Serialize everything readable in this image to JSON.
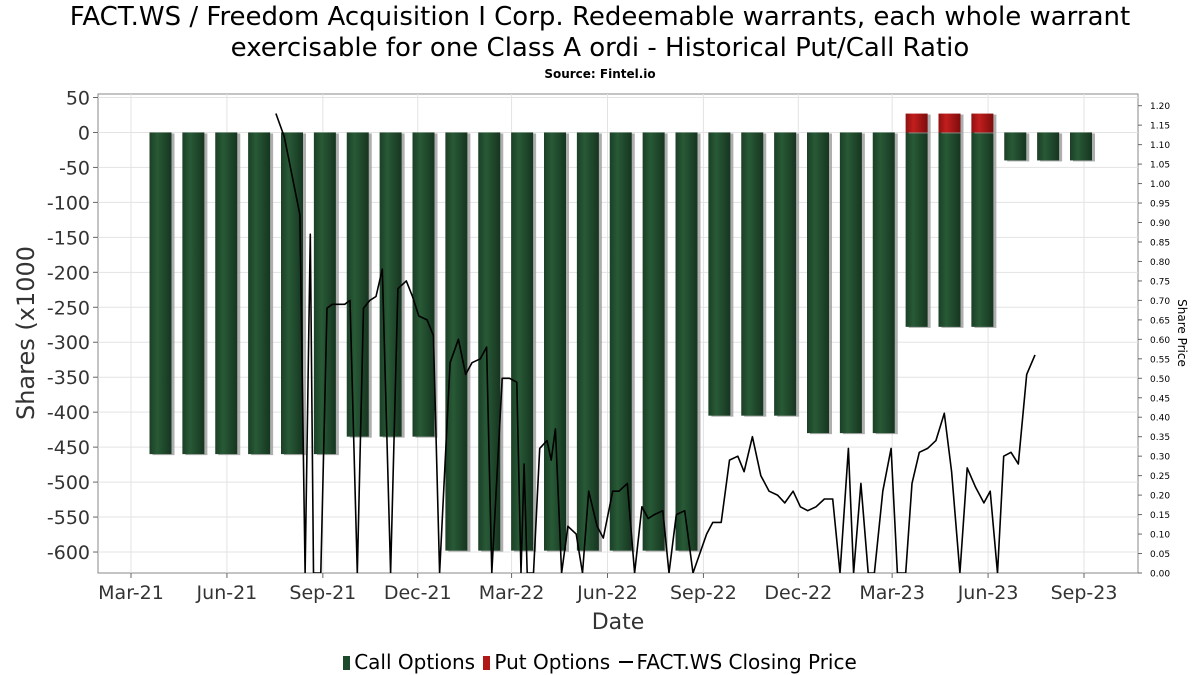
{
  "chart_data": {
    "type": "bar",
    "title_line1": "FACT.WS / Freedom Acquisition I Corp. Redeemable warrants, each whole warrant",
    "title_line2": "exercisable for one Class A ordi - Historical Put/Call Ratio",
    "subtitle": "Source: Fintel.io",
    "xlabel": "Date",
    "ylabel": "Shares (x1000",
    "y2label": "Share Price",
    "x_ticks": [
      "Mar-21",
      "Jun-21",
      "Sep-21",
      "Dec-21",
      "Mar-22",
      "Jun-22",
      "Sep-22",
      "Dec-22",
      "Mar-23",
      "Jun-23",
      "Sep-23"
    ],
    "ylim": [
      -630,
      55
    ],
    "y_ticks": [
      50,
      0,
      -50,
      -100,
      -150,
      -200,
      -250,
      -300,
      -350,
      -400,
      -450,
      -500,
      -550,
      -600
    ],
    "y2lim": [
      0,
      1.23
    ],
    "y2_ticks": [
      "0.00",
      "0.05",
      "0.10",
      "0.15",
      "0.20",
      "0.25",
      "0.30",
      "0.35",
      "0.40",
      "0.45",
      "0.50",
      "0.55",
      "0.60",
      "0.65",
      "0.70",
      "0.75",
      "0.80",
      "0.85",
      "0.90",
      "0.95",
      "1.00",
      "1.05",
      "1.10",
      "1.15",
      "1.20"
    ],
    "grid": true,
    "legend_position": "bottom",
    "colors": {
      "call": "#1e4a2c",
      "put": "#b01818",
      "price": "#000000"
    },
    "series": [
      {
        "name": "Call Options",
        "values": [
          -460,
          -460,
          -460,
          -460,
          -460,
          -460,
          -435,
          -435,
          -435,
          -598,
          -598,
          -598,
          -598,
          -598,
          -598,
          -598,
          -598,
          -405,
          -405,
          -405,
          -430,
          -430,
          -430,
          -278,
          -278,
          -278,
          -40,
          -40,
          -40
        ]
      },
      {
        "name": "Put Options",
        "values": [
          0,
          0,
          0,
          0,
          0,
          0,
          0,
          0,
          0,
          0,
          0,
          0,
          0,
          0,
          0,
          0,
          0,
          0,
          0,
          0,
          0,
          0,
          0,
          27,
          27,
          27,
          0,
          0,
          0
        ]
      },
      {
        "name": "FACT.WS Closing Price",
        "axis": "secondary",
        "points": [
          [
            "2021-07-18",
            1.18
          ],
          [
            "2021-07-26",
            1.12
          ],
          [
            "2021-08-10",
            0.92
          ],
          [
            "2021-08-15",
            0.0
          ],
          [
            "2021-08-20",
            0.87
          ],
          [
            "2021-08-23",
            0.0
          ],
          [
            "2021-08-30",
            0.0
          ],
          [
            "2021-09-05",
            0.68
          ],
          [
            "2021-09-10",
            0.69
          ],
          [
            "2021-09-16",
            0.69
          ],
          [
            "2021-09-22",
            0.69
          ],
          [
            "2021-09-27",
            0.7
          ],
          [
            "2021-10-04",
            0.0
          ],
          [
            "2021-10-10",
            0.68
          ],
          [
            "2021-10-16",
            0.7
          ],
          [
            "2021-10-22",
            0.71
          ],
          [
            "2021-10-28",
            0.78
          ],
          [
            "2021-11-05",
            0.0
          ],
          [
            "2021-11-12",
            0.73
          ],
          [
            "2021-11-20",
            0.75
          ],
          [
            "2021-11-26",
            0.71
          ],
          [
            "2021-12-02",
            0.66
          ],
          [
            "2021-12-10",
            0.65
          ],
          [
            "2021-12-16",
            0.61
          ],
          [
            "2021-12-22",
            0.0
          ],
          [
            "2022-01-01",
            0.54
          ],
          [
            "2022-01-09",
            0.6
          ],
          [
            "2022-01-16",
            0.51
          ],
          [
            "2022-01-22",
            0.54
          ],
          [
            "2022-01-30",
            0.55
          ],
          [
            "2022-02-05",
            0.58
          ],
          [
            "2022-02-10",
            0.0
          ],
          [
            "2022-02-20",
            0.5
          ],
          [
            "2022-02-27",
            0.5
          ],
          [
            "2022-03-06",
            0.49
          ],
          [
            "2022-03-10",
            0.0
          ],
          [
            "2022-03-13",
            0.28
          ],
          [
            "2022-03-16",
            0.0
          ],
          [
            "2022-03-22",
            0.0
          ],
          [
            "2022-03-28",
            0.32
          ],
          [
            "2022-04-04",
            0.34
          ],
          [
            "2022-04-08",
            0.29
          ],
          [
            "2022-04-12",
            0.37
          ],
          [
            "2022-04-18",
            0.0
          ],
          [
            "2022-04-24",
            0.12
          ],
          [
            "2022-05-02",
            0.1
          ],
          [
            "2022-05-08",
            0.0
          ],
          [
            "2022-05-14",
            0.21
          ],
          [
            "2022-05-22",
            0.12
          ],
          [
            "2022-05-28",
            0.09
          ],
          [
            "2022-06-06",
            0.21
          ],
          [
            "2022-06-12",
            0.21
          ],
          [
            "2022-06-20",
            0.23
          ],
          [
            "2022-06-27",
            0.0
          ],
          [
            "2022-07-04",
            0.17
          ],
          [
            "2022-07-10",
            0.14
          ],
          [
            "2022-07-16",
            0.15
          ],
          [
            "2022-07-24",
            0.16
          ],
          [
            "2022-07-30",
            0.0
          ],
          [
            "2022-08-06",
            0.15
          ],
          [
            "2022-08-14",
            0.16
          ],
          [
            "2022-08-22",
            0.0
          ],
          [
            "2022-09-04",
            0.1
          ],
          [
            "2022-09-10",
            0.13
          ],
          [
            "2022-09-18",
            0.13
          ],
          [
            "2022-09-26",
            0.29
          ],
          [
            "2022-10-04",
            0.3
          ],
          [
            "2022-10-10",
            0.26
          ],
          [
            "2022-10-18",
            0.35
          ],
          [
            "2022-10-26",
            0.25
          ],
          [
            "2022-11-03",
            0.21
          ],
          [
            "2022-11-11",
            0.2
          ],
          [
            "2022-11-18",
            0.18
          ],
          [
            "2022-11-26",
            0.21
          ],
          [
            "2022-12-03",
            0.17
          ],
          [
            "2022-12-10",
            0.16
          ],
          [
            "2022-12-18",
            0.17
          ],
          [
            "2022-12-26",
            0.19
          ],
          [
            "2023-01-03",
            0.19
          ],
          [
            "2023-01-10",
            0.0
          ],
          [
            "2023-01-18",
            0.32
          ],
          [
            "2023-01-23",
            0.0
          ],
          [
            "2023-01-30",
            0.23
          ],
          [
            "2023-02-06",
            0.0
          ],
          [
            "2023-02-12",
            0.0
          ],
          [
            "2023-02-20",
            0.21
          ],
          [
            "2023-02-28",
            0.32
          ],
          [
            "2023-03-06",
            0.0
          ],
          [
            "2023-03-14",
            0.0
          ],
          [
            "2023-03-20",
            0.23
          ],
          [
            "2023-03-27",
            0.31
          ],
          [
            "2023-04-04",
            0.32
          ],
          [
            "2023-04-12",
            0.34
          ],
          [
            "2023-04-20",
            0.41
          ],
          [
            "2023-04-27",
            0.26
          ],
          [
            "2023-05-05",
            0.0
          ],
          [
            "2023-05-12",
            0.27
          ],
          [
            "2023-05-20",
            0.22
          ],
          [
            "2023-05-28",
            0.18
          ],
          [
            "2023-06-03",
            0.21
          ],
          [
            "2023-06-10",
            0.0
          ],
          [
            "2023-06-16",
            0.3
          ],
          [
            "2023-06-23",
            0.31
          ],
          [
            "2023-06-30",
            0.28
          ],
          [
            "2023-07-08",
            0.51
          ],
          [
            "2023-07-16",
            0.56
          ]
        ]
      }
    ]
  }
}
